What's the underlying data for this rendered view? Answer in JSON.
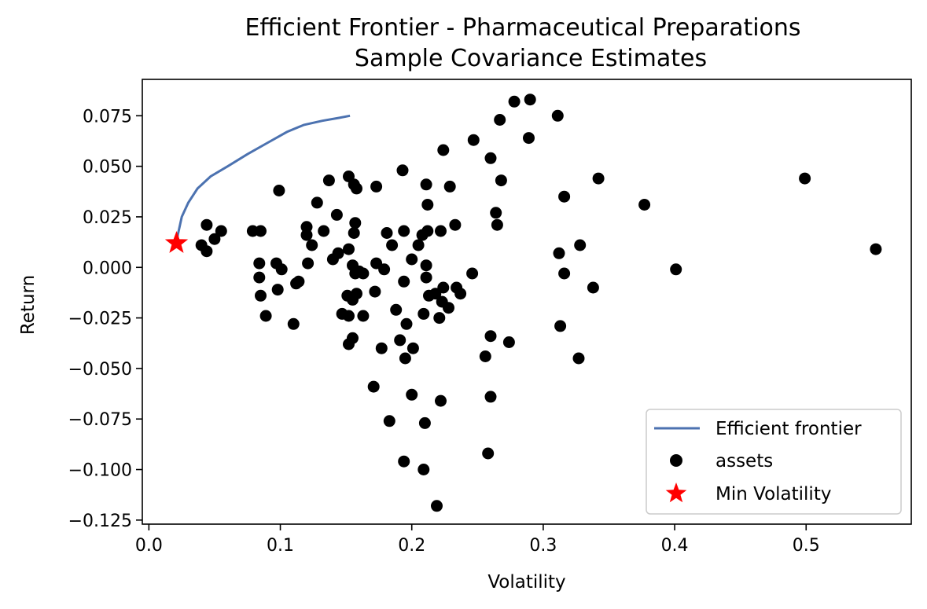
{
  "chart_data": {
    "type": "scatter",
    "title": "Efficient Frontier - Pharmaceutical Preparations",
    "subtitle": "Sample Covariance Estimates",
    "xlabel": "Volatility",
    "ylabel": "Return",
    "xlim": [
      -0.005,
      0.58
    ],
    "ylim": [
      -0.127,
      0.093
    ],
    "xticks": [
      0.0,
      0.1,
      0.2,
      0.3,
      0.4,
      0.5
    ],
    "xtick_labels": [
      "0.0",
      "0.1",
      "0.2",
      "0.3",
      "0.4",
      "0.5"
    ],
    "yticks": [
      0.075,
      0.05,
      0.025,
      0.0,
      -0.025,
      -0.05,
      -0.075,
      -0.1,
      -0.125
    ],
    "ytick_labels": [
      "0.075",
      "0.050",
      "0.025",
      "0.000",
      "−0.025",
      "−0.050",
      "−0.075",
      "−0.100",
      "−0.125"
    ],
    "grid": false,
    "legend_position": "lower-right",
    "colors": {
      "frontier": "#4c72b0",
      "assets": "#000000",
      "min_vol": "#ff0000"
    },
    "frontier": {
      "name": "Efficient frontier",
      "x": [
        0.021,
        0.022,
        0.025,
        0.03,
        0.037,
        0.047,
        0.06,
        0.075,
        0.09,
        0.105,
        0.118,
        0.132,
        0.145,
        0.153
      ],
      "y": [
        0.012,
        0.016,
        0.025,
        0.032,
        0.039,
        0.045,
        0.05,
        0.056,
        0.0615,
        0.067,
        0.0705,
        0.0725,
        0.074,
        0.075
      ]
    },
    "assets": {
      "name": "assets",
      "x": [
        0.278,
        0.29,
        0.267,
        0.311,
        0.289,
        0.247,
        0.224,
        0.26,
        0.193,
        0.342,
        0.268,
        0.211,
        0.229,
        0.173,
        0.152,
        0.137,
        0.156,
        0.158,
        0.316,
        0.099,
        0.128,
        0.212,
        0.264,
        0.143,
        0.157,
        0.12,
        0.265,
        0.044,
        0.377,
        0.499,
        0.553,
        0.079,
        0.085,
        0.055,
        0.156,
        0.212,
        0.133,
        0.12,
        0.181,
        0.194,
        0.222,
        0.233,
        0.208,
        0.185,
        0.205,
        0.124,
        0.05,
        0.04,
        0.044,
        0.152,
        0.328,
        0.312,
        0.144,
        0.14,
        0.084,
        0.173,
        0.121,
        0.2,
        0.097,
        0.211,
        0.155,
        0.101,
        0.16,
        0.179,
        0.157,
        0.163,
        0.316,
        0.246,
        0.084,
        0.401,
        0.194,
        0.211,
        0.114,
        0.112,
        0.224,
        0.234,
        0.172,
        0.098,
        0.338,
        0.237,
        0.085,
        0.213,
        0.218,
        0.151,
        0.158,
        0.155,
        0.223,
        0.188,
        0.228,
        0.089,
        0.147,
        0.163,
        0.221,
        0.209,
        0.196,
        0.11,
        0.152,
        0.313,
        0.26,
        0.155,
        0.274,
        0.191,
        0.177,
        0.201,
        0.152,
        0.256,
        0.195,
        0.327,
        0.171,
        0.2,
        0.26,
        0.222,
        0.183,
        0.21,
        0.258,
        0.194,
        0.209,
        0.219
      ],
      "y": [
        0.082,
        0.083,
        0.073,
        0.075,
        0.064,
        0.063,
        0.058,
        0.054,
        0.048,
        0.044,
        0.043,
        0.041,
        0.04,
        0.04,
        0.045,
        0.043,
        0.041,
        0.039,
        0.035,
        0.038,
        0.032,
        0.031,
        0.027,
        0.026,
        0.022,
        0.02,
        0.021,
        0.021,
        0.031,
        0.044,
        0.009,
        0.018,
        0.018,
        0.018,
        0.017,
        0.018,
        0.018,
        0.016,
        0.017,
        0.018,
        0.018,
        0.021,
        0.016,
        0.011,
        0.011,
        0.011,
        0.014,
        0.011,
        0.008,
        0.009,
        0.011,
        0.007,
        0.007,
        0.004,
        0.002,
        0.002,
        0.002,
        0.004,
        0.002,
        0.001,
        0.001,
        -0.001,
        -0.002,
        -0.001,
        -0.003,
        -0.003,
        -0.003,
        -0.003,
        -0.005,
        -0.001,
        -0.007,
        -0.005,
        -0.007,
        -0.008,
        -0.01,
        -0.01,
        -0.012,
        -0.011,
        -0.01,
        -0.013,
        -0.014,
        -0.014,
        -0.013,
        -0.014,
        -0.013,
        -0.016,
        -0.017,
        -0.021,
        -0.02,
        -0.024,
        -0.023,
        -0.024,
        -0.025,
        -0.023,
        -0.028,
        -0.028,
        -0.024,
        -0.029,
        -0.034,
        -0.035,
        -0.037,
        -0.036,
        -0.04,
        -0.04,
        -0.038,
        -0.044,
        -0.045,
        -0.045,
        -0.059,
        -0.063,
        -0.064,
        -0.066,
        -0.076,
        -0.077,
        -0.092,
        -0.096,
        -0.1,
        -0.118
      ]
    },
    "min_volatility": {
      "name": "Min Volatility",
      "x": 0.021,
      "y": 0.012
    }
  }
}
